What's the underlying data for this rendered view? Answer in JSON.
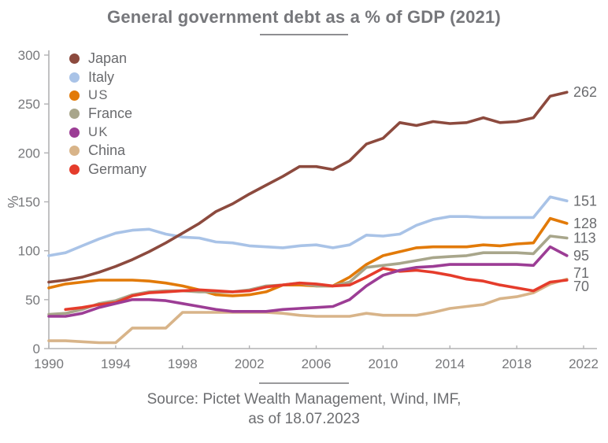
{
  "title": {
    "text": "General government debt as a % of GDP (2021)"
  },
  "source": {
    "line1": "Source: Pictet Wealth Management, Wind, IMF,",
    "line2": "as of 18.07.2023"
  },
  "chart_data": {
    "type": "line",
    "title": "General government debt as a % of GDP (2021)",
    "xlabel": "",
    "ylabel": "%",
    "xlim": [
      1990,
      2022
    ],
    "ylim": [
      0,
      300
    ],
    "grid": false,
    "legend_position": "top-left-inside",
    "xticks": [
      1990,
      1994,
      1998,
      2002,
      2006,
      2010,
      2014,
      2018,
      2022
    ],
    "yticks": [
      0,
      50,
      100,
      150,
      200,
      250,
      300
    ],
    "x": [
      1990,
      1991,
      1992,
      1993,
      1994,
      1995,
      1996,
      1997,
      1998,
      1999,
      2000,
      2001,
      2002,
      2003,
      2004,
      2005,
      2006,
      2007,
      2008,
      2009,
      2010,
      2011,
      2012,
      2013,
      2014,
      2015,
      2016,
      2017,
      2018,
      2019,
      2020,
      2021
    ],
    "series": [
      {
        "name": "Japan",
        "color": "#8C4A3E",
        "end_label": "262",
        "values": [
          68,
          70,
          73,
          78,
          84,
          91,
          99,
          108,
          118,
          128,
          140,
          148,
          158,
          167,
          176,
          186,
          186,
          183,
          192,
          209,
          215,
          231,
          228,
          232,
          230,
          231,
          236,
          231,
          232,
          236,
          258,
          262
        ]
      },
      {
        "name": "Italy",
        "color": "#A9C3E7",
        "end_label": "151",
        "values": [
          95,
          98,
          105,
          112,
          118,
          121,
          122,
          117,
          114,
          113,
          109,
          108,
          105,
          104,
          103,
          105,
          106,
          103,
          106,
          116,
          115,
          117,
          126,
          132,
          135,
          135,
          134,
          134,
          134,
          134,
          155,
          151
        ]
      },
      {
        "name": "US",
        "color": "#E27A08",
        "end_label": "128",
        "values": [
          62,
          66,
          68,
          70,
          70,
          70,
          69,
          67,
          64,
          60,
          55,
          54,
          55,
          58,
          65,
          65,
          64,
          64,
          73,
          86,
          95,
          99,
          103,
          104,
          104,
          104,
          106,
          105,
          107,
          108,
          133,
          128
        ]
      },
      {
        "name": "France",
        "color": "#A8A68B",
        "end_label": "113",
        "values": [
          35,
          36,
          40,
          46,
          49,
          55,
          58,
          59,
          59,
          58,
          58,
          58,
          60,
          64,
          65,
          67,
          64,
          64,
          68,
          83,
          85,
          87,
          90,
          93,
          94,
          95,
          98,
          98,
          98,
          97,
          115,
          113
        ]
      },
      {
        "name": "UK",
        "color": "#9C3D95",
        "end_label": "95",
        "values": [
          33,
          33,
          36,
          42,
          46,
          50,
          50,
          49,
          46,
          43,
          40,
          38,
          38,
          38,
          40,
          41,
          42,
          43,
          50,
          64,
          75,
          80,
          83,
          84,
          86,
          86,
          86,
          86,
          86,
          85,
          104,
          95
        ]
      },
      {
        "name": "China",
        "color": "#D8B489",
        "end_label": "71",
        "values": [
          8,
          8,
          7,
          6,
          6,
          21,
          21,
          21,
          37,
          37,
          37,
          37,
          37,
          37,
          36,
          34,
          33,
          33,
          33,
          36,
          34,
          34,
          34,
          37,
          41,
          43,
          45,
          51,
          53,
          57,
          66,
          71
        ]
      },
      {
        "name": "Germany",
        "color": "#E53C2B",
        "end_label": "70",
        "values": [
          null,
          40,
          42,
          45,
          47,
          54,
          57,
          58,
          59,
          60,
          59,
          58,
          59,
          63,
          65,
          67,
          66,
          64,
          65,
          73,
          82,
          79,
          80,
          78,
          75,
          71,
          69,
          65,
          62,
          59,
          68,
          70
        ]
      }
    ]
  }
}
